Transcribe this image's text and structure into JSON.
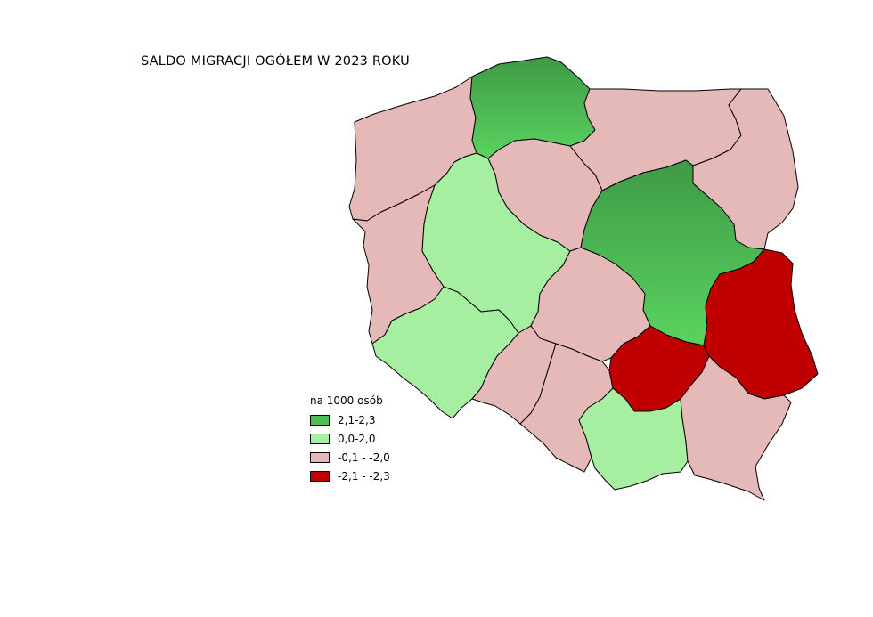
{
  "title": "SALDO MIGRACJI OGÓŁEM W 2023 ROKU",
  "legend": {
    "title": "na 1000 osób",
    "items": [
      {
        "label": "2,1-2,3",
        "color": "#4cbd52"
      },
      {
        "label": "0,0-2,0",
        "color": "#a6eea0"
      },
      {
        "label": "-0,1 - -2,0",
        "color": "#e6b9b9"
      },
      {
        "label": "-2,1 - -2,3",
        "color": "#c00000"
      }
    ]
  }
}
